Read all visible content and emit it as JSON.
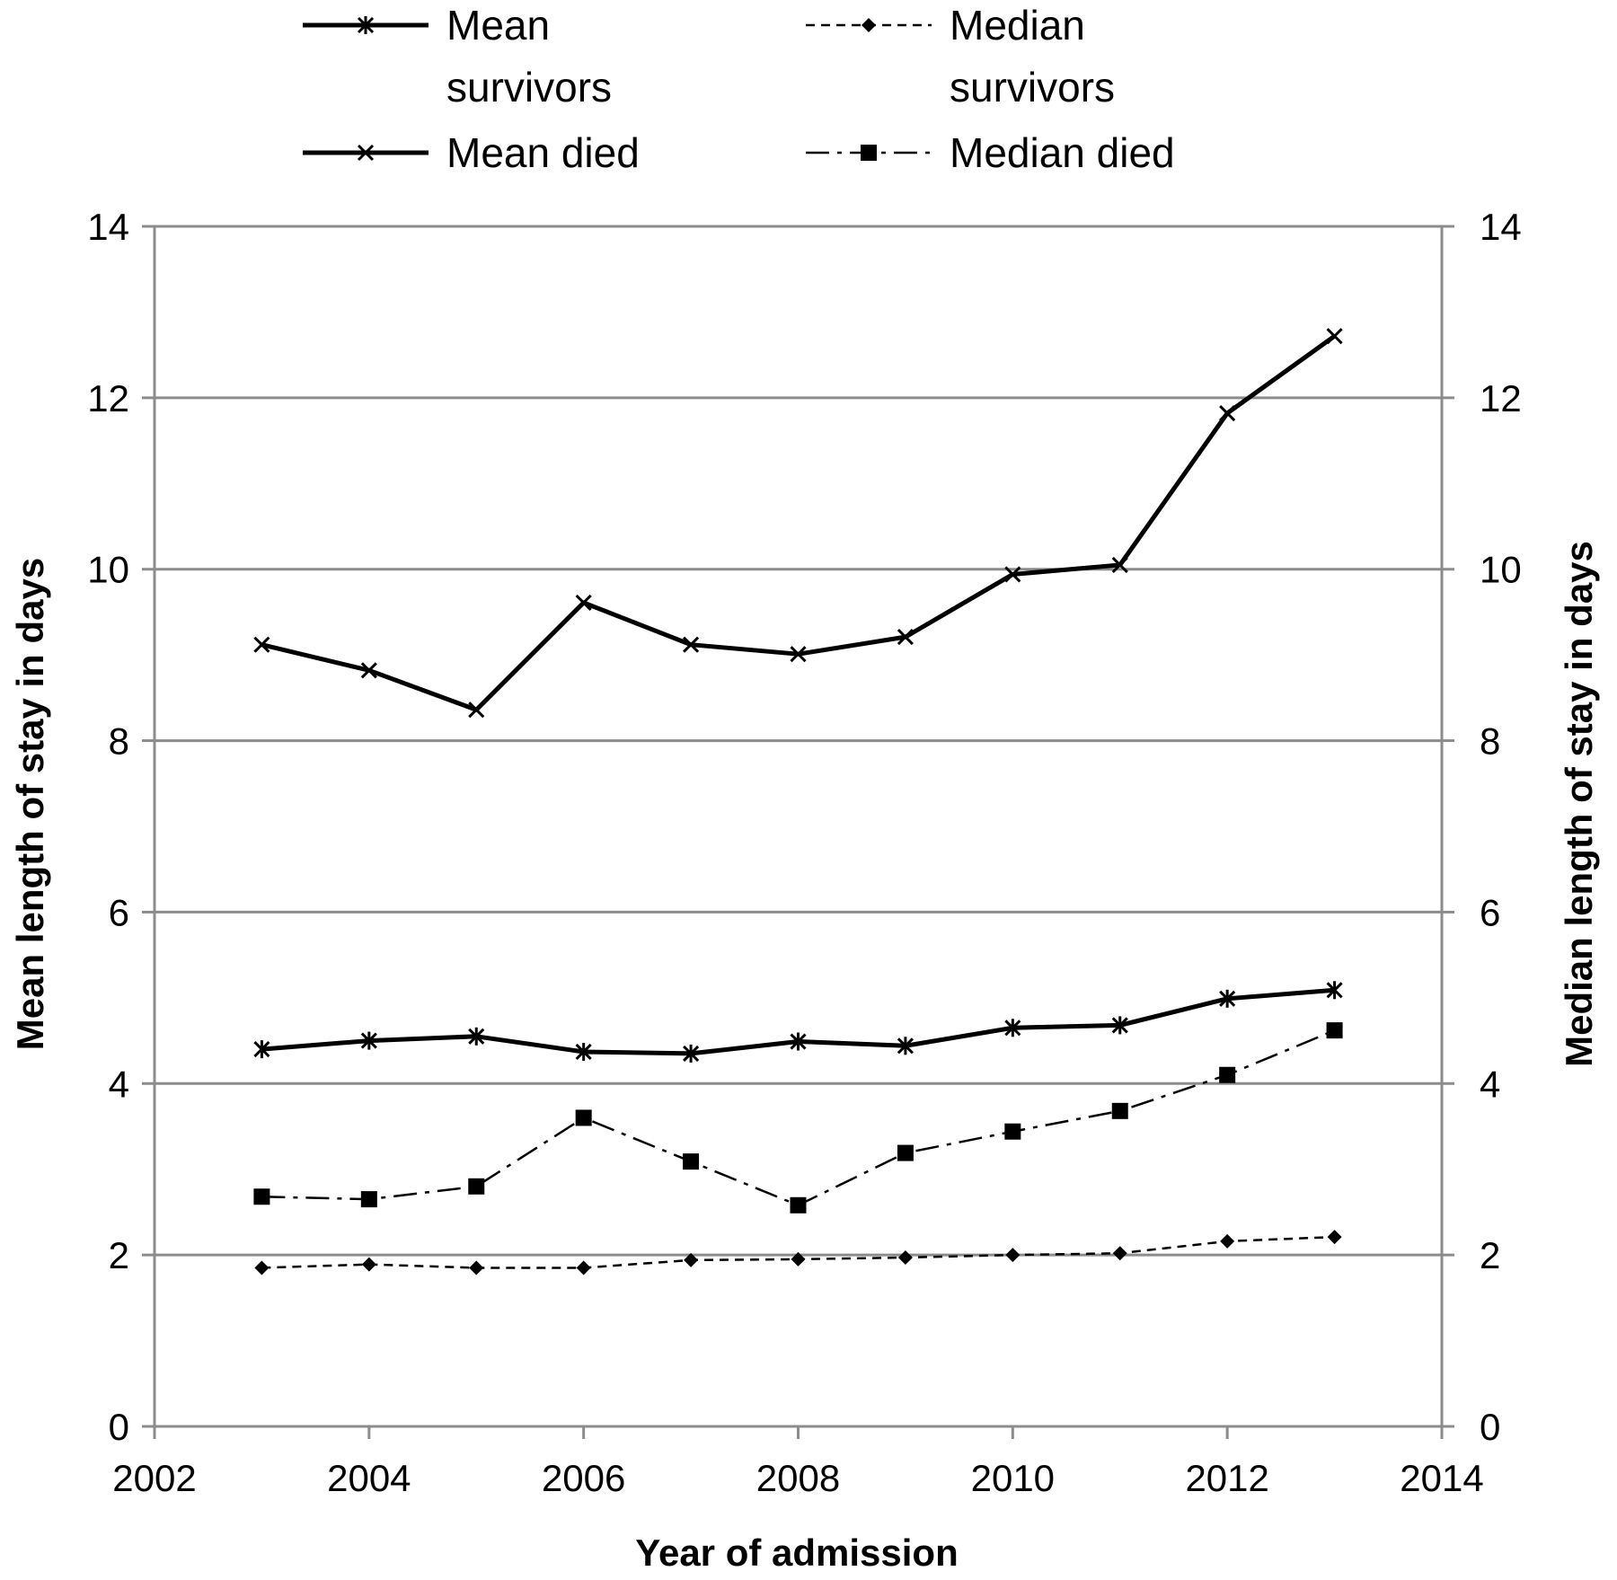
{
  "chart_data": {
    "type": "line",
    "xlabel": "Year of admission",
    "ylabel": "Mean length of stay in days",
    "y2label": "Median length of stay in days",
    "xlim": [
      2002,
      2014
    ],
    "ylim": [
      0,
      14
    ],
    "y2lim": [
      0,
      14
    ],
    "x_ticks": [
      "2002",
      "2004",
      "2006",
      "2008",
      "2010",
      "2012",
      "2014"
    ],
    "y_ticks": [
      "0",
      "2",
      "4",
      "6",
      "8",
      "10",
      "12",
      "14"
    ],
    "y2_ticks": [
      "0",
      "2",
      "4",
      "6",
      "8",
      "10",
      "12",
      "14"
    ],
    "grid": true,
    "legend_position": "top",
    "x": [
      2003,
      2004,
      2005,
      2006,
      2007,
      2008,
      2009,
      2010,
      2011,
      2012,
      2013
    ],
    "series": [
      {
        "name": "Mean survivors",
        "legend_lines": [
          "Mean",
          "survivors"
        ],
        "marker": "asterisk",
        "dash": "solid",
        "axis": "left",
        "values": [
          4.4,
          4.5,
          4.55,
          4.37,
          4.35,
          4.49,
          4.44,
          4.65,
          4.68,
          4.99,
          5.09
        ]
      },
      {
        "name": "Median survivors",
        "legend_lines": [
          "Median",
          "survivors"
        ],
        "marker": "diamond",
        "dash": "dashed",
        "axis": "right",
        "values": [
          1.85,
          1.89,
          1.85,
          1.85,
          1.94,
          1.95,
          1.97,
          2.0,
          2.02,
          2.16,
          2.21
        ]
      },
      {
        "name": "Mean died",
        "legend_lines": [
          "Mean died"
        ],
        "marker": "x",
        "dash": "solid",
        "axis": "left",
        "values": [
          9.12,
          8.82,
          8.36,
          9.61,
          9.12,
          9.01,
          9.21,
          9.94,
          10.05,
          11.82,
          12.72
        ]
      },
      {
        "name": "Median died",
        "legend_lines": [
          "Median died"
        ],
        "marker": "square",
        "dash": "dashdot",
        "axis": "right",
        "values": [
          2.68,
          2.65,
          2.8,
          3.6,
          3.09,
          2.58,
          3.19,
          3.44,
          3.68,
          4.1,
          4.62
        ]
      }
    ]
  }
}
